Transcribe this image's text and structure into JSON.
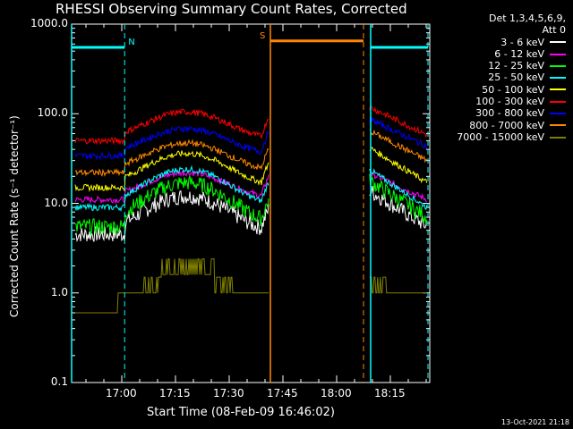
{
  "chart_data": {
    "type": "line",
    "title": "RHESSI Observing Summary Count Rates, Corrected",
    "xlabel": "Start Time (08-Feb-09 16:46:02)",
    "ylabel": "Corrected Count Rate (s⁻¹ detector⁻¹)",
    "y_scale": "log",
    "ylim": [
      0.1,
      1000
    ],
    "xlim_minutes": [
      0,
      100
    ],
    "y_ticks": [
      "0.1",
      "1.0",
      "10.0",
      "100.0",
      "1000.0"
    ],
    "x_ticks": [
      {
        "label": "17:00",
        "minute": 14
      },
      {
        "label": "17:15",
        "minute": 29
      },
      {
        "label": "17:30",
        "minute": 44
      },
      {
        "label": "17:45",
        "minute": 59
      },
      {
        "label": "18:00",
        "minute": 74
      },
      {
        "label": "18:15",
        "minute": 89
      }
    ],
    "legend_header": [
      "Det 1,3,4,5,6,9,",
      "Att 0"
    ],
    "grid": false,
    "legend_placement": "right",
    "data_gap_minutes": [
      55.5,
      83
    ],
    "series": [
      {
        "name": "3 - 6 keV",
        "color": "#ffffff",
        "pre_night": 4.5,
        "peak": 12,
        "post_start": 14,
        "post_end": 5.5
      },
      {
        "name": "6 - 12 keV",
        "color": "#ff00ff",
        "pre_night": 11,
        "peak": 22,
        "post_start": 22,
        "post_end": 11
      },
      {
        "name": "12 - 25 keV",
        "color": "#00ff00",
        "pre_night": 5.5,
        "peak": 17,
        "post_start": 18,
        "post_end": 7
      },
      {
        "name": "25 - 50 keV",
        "color": "#00ffff",
        "pre_night": 9,
        "peak": 24,
        "post_start": 24,
        "post_end": 9
      },
      {
        "name": "50 - 100 keV",
        "color": "#ffff00",
        "pre_night": 15,
        "peak": 36,
        "post_start": 42,
        "post_end": 17
      },
      {
        "name": "100 - 300 keV",
        "color": "#ff0000",
        "pre_night": 50,
        "peak": 105,
        "post_start": 120,
        "post_end": 58
      },
      {
        "name": "300 - 800 keV",
        "color": "#0000ff",
        "pre_night": 34,
        "peak": 68,
        "post_start": 88,
        "post_end": 43
      },
      {
        "name": "800 - 7000 keV",
        "color": "#ff8800",
        "pre_night": 22,
        "peak": 47,
        "post_start": 65,
        "post_end": 30
      },
      {
        "name": "7000 - 15000 keV",
        "color": "#808000",
        "pre_night": 1.0,
        "peak": 2.5,
        "post_start": 2.5,
        "post_end": 1.0
      }
    ],
    "annotations": [
      {
        "type": "night",
        "label": "N",
        "color": "#00ffff",
        "start_minute": 0,
        "end_minute": 14.8,
        "y": 550
      },
      {
        "type": "night",
        "label": "",
        "color": "#00ffff",
        "start_minute": 83.5,
        "end_minute": 99.5,
        "y": 550
      },
      {
        "type": "saa",
        "label": "S",
        "color": "#ff8800",
        "start_minute": 55.5,
        "end_minute": 81.5,
        "y": 650
      }
    ]
  },
  "timestamp": "13-Oct-2021 21:18"
}
